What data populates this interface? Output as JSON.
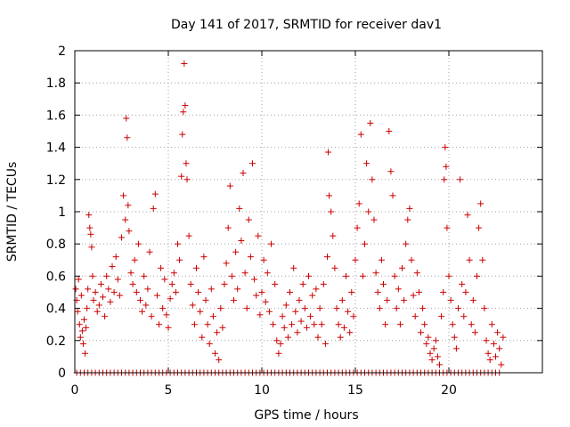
{
  "chart_data": {
    "type": "scatter",
    "title": "Day 141 of 2017, SRMTID for receiver dav1",
    "xlabel": "GPS time / hours",
    "ylabel": "SRMTID / TECUs",
    "xlim": [
      0,
      25
    ],
    "ylim": [
      0,
      2
    ],
    "xticks": [
      0,
      5,
      10,
      15,
      20
    ],
    "yticks": [
      0,
      0.2,
      0.4,
      0.6,
      0.8,
      1,
      1.2,
      1.4,
      1.6,
      1.8,
      2
    ],
    "xtick_labels": [
      "0",
      "5",
      "10",
      "15",
      "20"
    ],
    "ytick_labels": [
      "0",
      "0.2",
      "0.4",
      "0.6",
      "0.8",
      "1",
      "1.2",
      "1.4",
      "1.6",
      "1.8",
      "2"
    ],
    "grid": true,
    "marker": "plus",
    "series": [
      {
        "color": "#cc0000",
        "points": [
          [
            0.05,
            0.52
          ],
          [
            0.1,
            0.45
          ],
          [
            0.15,
            0.38
          ],
          [
            0.2,
            0.58
          ],
          [
            0.25,
            0.3
          ],
          [
            0.3,
            0.22
          ],
          [
            0.35,
            0.48
          ],
          [
            0.4,
            0.26
          ],
          [
            0.45,
            0.18
          ],
          [
            0.5,
            0.33
          ],
          [
            0.55,
            0.12
          ],
          [
            0.6,
            0.28
          ],
          [
            0.65,
            0.4
          ],
          [
            0.7,
            0.52
          ],
          [
            0.75,
            0.98
          ],
          [
            0.8,
            0.9
          ],
          [
            0.85,
            0.86
          ],
          [
            0.9,
            0.78
          ],
          [
            0.95,
            0.6
          ],
          [
            1.0,
            0.45
          ],
          [
            1.1,
            0.5
          ],
          [
            1.2,
            0.38
          ],
          [
            1.3,
            0.42
          ],
          [
            1.4,
            0.55
          ],
          [
            1.5,
            0.47
          ],
          [
            1.6,
            0.35
          ],
          [
            1.7,
            0.6
          ],
          [
            1.8,
            0.52
          ],
          [
            1.9,
            0.44
          ],
          [
            2.0,
            0.66
          ],
          [
            2.1,
            0.5
          ],
          [
            2.2,
            0.72
          ],
          [
            2.3,
            0.58
          ],
          [
            2.4,
            0.48
          ],
          [
            2.5,
            0.84
          ],
          [
            2.6,
            1.1
          ],
          [
            2.7,
            0.95
          ],
          [
            2.75,
            1.58
          ],
          [
            2.8,
            1.46
          ],
          [
            2.85,
            1.04
          ],
          [
            2.9,
            0.88
          ],
          [
            3.0,
            0.62
          ],
          [
            3.1,
            0.55
          ],
          [
            3.2,
            0.7
          ],
          [
            3.3,
            0.5
          ],
          [
            3.4,
            0.8
          ],
          [
            3.5,
            0.45
          ],
          [
            3.6,
            0.38
          ],
          [
            3.7,
            0.6
          ],
          [
            3.8,
            0.42
          ],
          [
            3.9,
            0.52
          ],
          [
            4.0,
            0.75
          ],
          [
            4.1,
            0.35
          ],
          [
            4.2,
            1.02
          ],
          [
            4.3,
            1.11
          ],
          [
            4.4,
            0.48
          ],
          [
            4.5,
            0.3
          ],
          [
            4.6,
            0.65
          ],
          [
            4.7,
            0.4
          ],
          [
            4.8,
            0.58
          ],
          [
            4.9,
            0.36
          ],
          [
            5.0,
            0.28
          ],
          [
            5.1,
            0.46
          ],
          [
            5.2,
            0.55
          ],
          [
            5.3,
            0.62
          ],
          [
            5.4,
            0.5
          ],
          [
            5.5,
            0.8
          ],
          [
            5.6,
            0.7
          ],
          [
            5.7,
            1.22
          ],
          [
            5.75,
            1.48
          ],
          [
            5.8,
            1.62
          ],
          [
            5.85,
            1.92
          ],
          [
            5.9,
            1.66
          ],
          [
            5.95,
            1.3
          ],
          [
            6.0,
            1.2
          ],
          [
            6.1,
            0.85
          ],
          [
            6.2,
            0.55
          ],
          [
            6.3,
            0.42
          ],
          [
            6.4,
            0.3
          ],
          [
            6.5,
            0.65
          ],
          [
            6.6,
            0.5
          ],
          [
            6.7,
            0.38
          ],
          [
            6.8,
            0.22
          ],
          [
            6.9,
            0.72
          ],
          [
            7.0,
            0.45
          ],
          [
            7.1,
            0.3
          ],
          [
            7.2,
            0.18
          ],
          [
            7.3,
            0.52
          ],
          [
            7.4,
            0.35
          ],
          [
            7.5,
            0.12
          ],
          [
            7.6,
            0.25
          ],
          [
            7.7,
            0.08
          ],
          [
            7.8,
            0.4
          ],
          [
            7.9,
            0.28
          ],
          [
            8.0,
            0.55
          ],
          [
            8.1,
            0.68
          ],
          [
            8.2,
            0.9
          ],
          [
            8.3,
            1.16
          ],
          [
            8.4,
            0.6
          ],
          [
            8.5,
            0.45
          ],
          [
            8.6,
            0.75
          ],
          [
            8.7,
            0.52
          ],
          [
            8.8,
            1.02
          ],
          [
            8.9,
            0.82
          ],
          [
            9.0,
            1.24
          ],
          [
            9.1,
            0.62
          ],
          [
            9.2,
            0.4
          ],
          [
            9.3,
            0.95
          ],
          [
            9.4,
            0.72
          ],
          [
            9.5,
            1.3
          ],
          [
            9.6,
            0.58
          ],
          [
            9.7,
            0.48
          ],
          [
            9.8,
            0.85
          ],
          [
            9.9,
            0.36
          ],
          [
            10.0,
            0.5
          ],
          [
            10.1,
            0.7
          ],
          [
            10.2,
            0.44
          ],
          [
            10.3,
            0.62
          ],
          [
            10.4,
            0.38
          ],
          [
            10.5,
            0.8
          ],
          [
            10.6,
            0.3
          ],
          [
            10.7,
            0.55
          ],
          [
            10.8,
            0.2
          ],
          [
            10.9,
            0.12
          ],
          [
            11.0,
            0.18
          ],
          [
            11.1,
            0.35
          ],
          [
            11.2,
            0.28
          ],
          [
            11.3,
            0.42
          ],
          [
            11.4,
            0.22
          ],
          [
            11.5,
            0.5
          ],
          [
            11.6,
            0.3
          ],
          [
            11.7,
            0.65
          ],
          [
            11.8,
            0.38
          ],
          [
            11.9,
            0.25
          ],
          [
            12.0,
            0.45
          ],
          [
            12.1,
            0.32
          ],
          [
            12.2,
            0.55
          ],
          [
            12.3,
            0.4
          ],
          [
            12.4,
            0.28
          ],
          [
            12.5,
            0.6
          ],
          [
            12.6,
            0.35
          ],
          [
            12.7,
            0.48
          ],
          [
            12.8,
            0.3
          ],
          [
            12.9,
            0.52
          ],
          [
            13.0,
            0.22
          ],
          [
            13.1,
            0.4
          ],
          [
            13.2,
            0.3
          ],
          [
            13.3,
            0.55
          ],
          [
            13.4,
            0.18
          ],
          [
            13.5,
            0.72
          ],
          [
            13.55,
            1.37
          ],
          [
            13.6,
            1.1
          ],
          [
            13.7,
            1.0
          ],
          [
            13.8,
            0.85
          ],
          [
            13.9,
            0.65
          ],
          [
            14.0,
            0.4
          ],
          [
            14.1,
            0.3
          ],
          [
            14.2,
            0.22
          ],
          [
            14.3,
            0.45
          ],
          [
            14.4,
            0.28
          ],
          [
            14.5,
            0.6
          ],
          [
            14.6,
            0.38
          ],
          [
            14.7,
            0.25
          ],
          [
            14.8,
            0.5
          ],
          [
            14.9,
            0.35
          ],
          [
            15.0,
            0.7
          ],
          [
            15.1,
            0.9
          ],
          [
            15.2,
            1.05
          ],
          [
            15.3,
            1.48
          ],
          [
            15.4,
            0.6
          ],
          [
            15.5,
            0.8
          ],
          [
            15.6,
            1.3
          ],
          [
            15.7,
            1.0
          ],
          [
            15.8,
            1.55
          ],
          [
            15.9,
            1.2
          ],
          [
            16.0,
            0.95
          ],
          [
            16.1,
            0.62
          ],
          [
            16.2,
            0.5
          ],
          [
            16.3,
            0.4
          ],
          [
            16.4,
            0.7
          ],
          [
            16.5,
            0.55
          ],
          [
            16.6,
            0.3
          ],
          [
            16.7,
            0.45
          ],
          [
            16.8,
            1.5
          ],
          [
            16.9,
            1.25
          ],
          [
            17.0,
            1.1
          ],
          [
            17.1,
            0.6
          ],
          [
            17.2,
            0.4
          ],
          [
            17.3,
            0.52
          ],
          [
            17.4,
            0.3
          ],
          [
            17.5,
            0.65
          ],
          [
            17.6,
            0.45
          ],
          [
            17.7,
            0.8
          ],
          [
            17.8,
            0.95
          ],
          [
            17.9,
            1.02
          ],
          [
            18.0,
            0.7
          ],
          [
            18.1,
            0.48
          ],
          [
            18.2,
            0.35
          ],
          [
            18.3,
            0.62
          ],
          [
            18.4,
            0.5
          ],
          [
            18.5,
            0.25
          ],
          [
            18.6,
            0.4
          ],
          [
            18.7,
            0.3
          ],
          [
            18.8,
            0.18
          ],
          [
            18.9,
            0.22
          ],
          [
            19.0,
            0.12
          ],
          [
            19.1,
            0.08
          ],
          [
            19.2,
            0.15
          ],
          [
            19.3,
            0.2
          ],
          [
            19.4,
            0.1
          ],
          [
            19.5,
            0.05
          ],
          [
            19.6,
            0.35
          ],
          [
            19.7,
            0.5
          ],
          [
            19.75,
            1.2
          ],
          [
            19.8,
            1.4
          ],
          [
            19.85,
            1.28
          ],
          [
            19.9,
            0.9
          ],
          [
            20.0,
            0.6
          ],
          [
            20.1,
            0.45
          ],
          [
            20.2,
            0.3
          ],
          [
            20.3,
            0.22
          ],
          [
            20.4,
            0.15
          ],
          [
            20.5,
            0.4
          ],
          [
            20.6,
            1.2
          ],
          [
            20.7,
            0.55
          ],
          [
            20.8,
            0.35
          ],
          [
            20.9,
            0.5
          ],
          [
            21.0,
            0.98
          ],
          [
            21.1,
            0.7
          ],
          [
            21.2,
            0.3
          ],
          [
            21.3,
            0.45
          ],
          [
            21.4,
            0.25
          ],
          [
            21.5,
            0.6
          ],
          [
            21.6,
            0.9
          ],
          [
            21.7,
            1.05
          ],
          [
            21.8,
            0.7
          ],
          [
            21.9,
            0.4
          ],
          [
            22.0,
            0.2
          ],
          [
            22.1,
            0.12
          ],
          [
            22.2,
            0.08
          ],
          [
            22.3,
            0.3
          ],
          [
            22.4,
            0.18
          ],
          [
            22.5,
            0.1
          ],
          [
            22.6,
            0.25
          ],
          [
            22.7,
            0.15
          ],
          [
            22.8,
            0.05
          ],
          [
            22.9,
            0.22
          ]
        ]
      }
    ],
    "zero_points_x": [
      0.1,
      0.3,
      0.5,
      0.7,
      0.9,
      1.1,
      1.3,
      1.5,
      1.7,
      1.9,
      2.1,
      2.3,
      2.5,
      2.7,
      2.9,
      3.1,
      3.3,
      3.5,
      3.7,
      3.9,
      4.1,
      4.3,
      4.5,
      4.7,
      4.9,
      5.1,
      5.3,
      5.5,
      5.7,
      5.9,
      6.1,
      6.3,
      6.5,
      6.7,
      6.9,
      7.1,
      7.3,
      7.5,
      7.7,
      7.9,
      8.1,
      8.3,
      8.5,
      8.7,
      8.9,
      9.1,
      9.3,
      9.5,
      9.7,
      9.9,
      10.1,
      10.3,
      10.5,
      10.7,
      10.9,
      11.1,
      11.3,
      11.5,
      11.7,
      11.9,
      12.1,
      12.3,
      12.5,
      12.7,
      12.9,
      13.1,
      13.3,
      13.5,
      13.7,
      13.9,
      14.1,
      14.3,
      14.5,
      14.7,
      14.9,
      15.1,
      15.3,
      15.5,
      15.7,
      15.9,
      16.1,
      16.3,
      16.5,
      16.7,
      16.9,
      17.1,
      17.3,
      17.5,
      17.7,
      17.9,
      18.1,
      18.3,
      18.5,
      18.7,
      18.9,
      19.1,
      19.3,
      19.5,
      19.7,
      19.9,
      20.1,
      20.3,
      20.5,
      20.7,
      20.9,
      21.1,
      21.3,
      21.5,
      21.7,
      21.9,
      22.1,
      22.3,
      22.5,
      22.7
    ]
  }
}
